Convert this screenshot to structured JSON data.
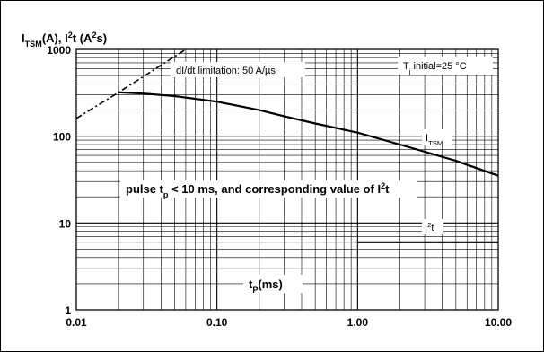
{
  "chart_data": {
    "type": "line",
    "xscale": "log",
    "yscale": "log",
    "xlim": [
      0.01,
      10
    ],
    "ylim": [
      1,
      1000
    ],
    "x_ticks": [
      "0.01",
      "0.10",
      "1.00",
      "10.00"
    ],
    "y_ticks": [
      "1",
      "10",
      "100",
      "1000"
    ],
    "xlabel": {
      "main": "t",
      "sub": "P",
      "rest": "(ms)"
    },
    "ylabel": {
      "a": "I",
      "a_sub": "TSM",
      "b": "(A), I",
      "b_sup": "2",
      "c": "t (A",
      "c_sup": "2",
      "d": "s)"
    },
    "grid": true,
    "series": [
      {
        "name": "I_TSM",
        "label": {
          "main": "I",
          "sub": "TSM"
        },
        "style": "solid",
        "points": [
          [
            0.02,
            320
          ],
          [
            0.03,
            310
          ],
          [
            0.05,
            290
          ],
          [
            0.1,
            250
          ],
          [
            0.2,
            200
          ],
          [
            0.3,
            170
          ],
          [
            0.5,
            140
          ],
          [
            1,
            110
          ],
          [
            2,
            80
          ],
          [
            5,
            52
          ],
          [
            10,
            35
          ]
        ]
      },
      {
        "name": "I2t",
        "label": {
          "main": "I",
          "sup": "2",
          "rest": "t"
        },
        "style": "solid",
        "points": [
          [
            1,
            6
          ],
          [
            10,
            6
          ]
        ]
      },
      {
        "name": "dI/dt limitation",
        "style": "dashed",
        "points": [
          [
            0.01,
            160
          ],
          [
            0.02,
            320
          ],
          [
            0.06,
            1000
          ]
        ]
      }
    ],
    "annotations": {
      "didt": "dI/dt limitation: 50 A/µs",
      "tj": {
        "a": "T",
        "sub": "j",
        "b": " initial=25 °C"
      },
      "pulse": {
        "a": "pulse t",
        "sub": "p",
        "b": " < 10 ms, and corresponding value of I",
        "sup": "2",
        "c": "t"
      }
    }
  }
}
